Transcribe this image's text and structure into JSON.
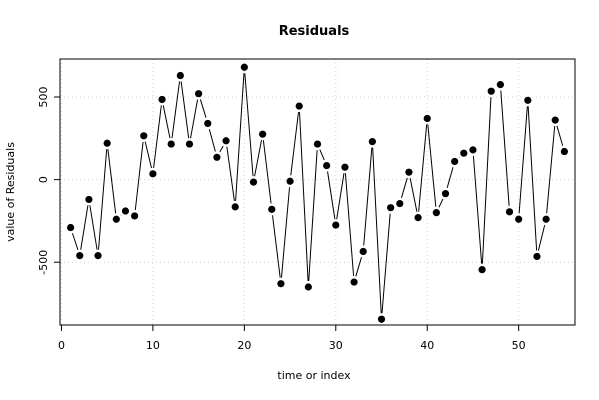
{
  "chart_data": {
    "type": "line",
    "title": "Residuals",
    "xlabel": "time or index",
    "ylabel": "value of Residuals",
    "xlim": [
      -0.16,
      56.16
    ],
    "ylim": [
      -880,
      730
    ],
    "x_ticks": [
      0,
      10,
      20,
      30,
      40,
      50
    ],
    "y_ticks": [
      -500,
      0,
      500
    ],
    "grid": true,
    "series": [
      {
        "markers": true,
        "x": [
          1,
          2,
          3,
          4,
          5,
          6,
          7,
          8,
          9,
          10,
          11,
          12,
          13,
          14,
          15,
          16,
          17,
          18,
          19,
          20,
          21,
          22,
          23,
          24,
          25,
          26,
          27,
          28,
          29,
          30,
          31,
          32,
          33,
          34,
          35,
          36,
          37,
          38,
          39,
          40,
          41,
          42,
          43,
          44,
          45,
          46,
          47,
          48,
          49,
          50,
          51,
          52,
          53,
          54,
          55
        ],
        "values": [
          -290,
          -460,
          -120,
          -460,
          220,
          -240,
          -190,
          -220,
          265,
          35,
          485,
          215,
          630,
          215,
          520,
          340,
          135,
          235,
          -165,
          680,
          -15,
          275,
          -180,
          -630,
          -10,
          445,
          -650,
          215,
          85,
          -275,
          75,
          -620,
          -435,
          230,
          -845,
          -170,
          -145,
          45,
          -230,
          370,
          -200,
          -85,
          110,
          160,
          180,
          -545,
          535,
          575,
          -195,
          -240,
          480,
          -465,
          -240,
          360,
          170
        ]
      }
    ]
  }
}
